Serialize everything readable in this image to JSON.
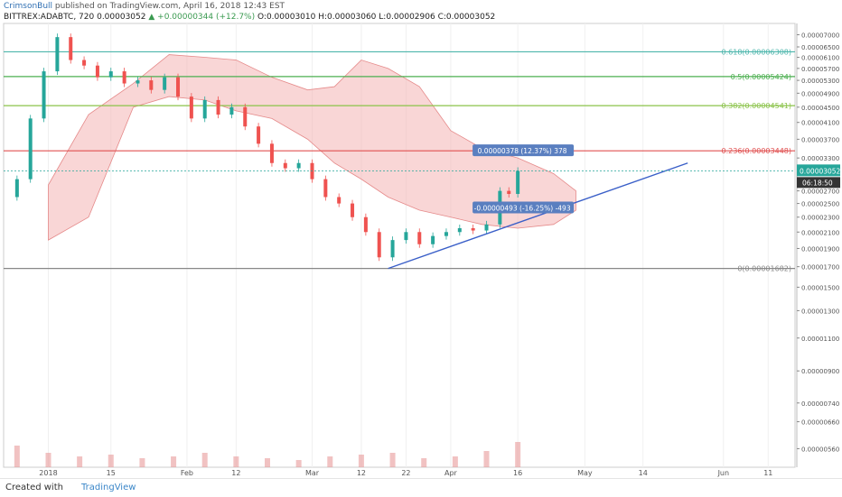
{
  "header": {
    "author": "CrimsonBull",
    "published": "published on TradingView.com, April 16, 2018 12:43 EST",
    "symbol": "BITTREX:ADABTC, 720",
    "last": "0.00003052",
    "change_arrow": "▲",
    "change": "+0.00000344 (+12.7%)",
    "ohlc": "O:0.00003010 H:0.00003060 L:0.00002906 C:0.00003052"
  },
  "footer": {
    "created_with": "Created with",
    "brand": "TradingView"
  },
  "colors": {
    "up": "#26a69a",
    "down": "#ef5350",
    "cloud_red": "#f4b5b5",
    "cloud_green": "#b5d8b0",
    "trend": "#3a5fc8",
    "fib_green": "#4caf50",
    "fib_red": "#e05050",
    "fib_yellow": "#8bc34a",
    "fib_teal": "#4db6ac"
  },
  "chart_data": {
    "type": "candlestick",
    "y_log": true,
    "ylim": [
      5e-06,
      7.5e-05
    ],
    "xlim": [
      "2017-12-22",
      "2018-06-17"
    ],
    "y_ticks": [
      {
        "label": "0.00007000",
        "v": 7e-05
      },
      {
        "label": "0.00006500",
        "v": 6.5e-05
      },
      {
        "label": "0.00006100",
        "v": 6.1e-05
      },
      {
        "label": "0.00005700",
        "v": 5.7e-05
      },
      {
        "label": "0.00005300",
        "v": 5.3e-05
      },
      {
        "label": "0.00004900",
        "v": 4.9e-05
      },
      {
        "label": "0.00004500",
        "v": 4.5e-05
      },
      {
        "label": "0.00004100",
        "v": 4.1e-05
      },
      {
        "label": "0.00003700",
        "v": 3.7e-05
      },
      {
        "label": "0.00003300",
        "v": 3.3e-05
      },
      {
        "label": "0.00002700",
        "v": 2.7e-05
      },
      {
        "label": "0.00002500",
        "v": 2.5e-05
      },
      {
        "label": "0.00002300",
        "v": 2.3e-05
      },
      {
        "label": "0.00002100",
        "v": 2.1e-05
      },
      {
        "label": "0.00001900",
        "v": 1.9e-05
      },
      {
        "label": "0.00001700",
        "v": 1.7e-05
      },
      {
        "label": "0.00001500",
        "v": 1.5e-05
      },
      {
        "label": "0.00001300",
        "v": 1.3e-05
      },
      {
        "label": "0.00001100",
        "v": 1.1e-05
      },
      {
        "label": "0.00000900",
        "v": 9e-06
      },
      {
        "label": "0.00000740",
        "v": 7.4e-06
      },
      {
        "label": "0.00000660",
        "v": 6.6e-06
      },
      {
        "label": "0.00000560",
        "v": 5.6e-06
      }
    ],
    "x_ticks": [
      {
        "label": "2018",
        "d": "2018-01-01"
      },
      {
        "label": "15",
        "d": "2018-01-15"
      },
      {
        "label": "Feb",
        "d": "2018-02-01"
      },
      {
        "label": "12",
        "d": "2018-02-12"
      },
      {
        "label": "Mar",
        "d": "2018-03-01"
      },
      {
        "label": "12",
        "d": "2018-03-12"
      },
      {
        "label": "22",
        "d": "2018-03-22"
      },
      {
        "label": "Apr",
        "d": "2018-04-01"
      },
      {
        "label": "16",
        "d": "2018-04-16"
      },
      {
        "label": "May",
        "d": "2018-05-01"
      },
      {
        "label": "14",
        "d": "2018-05-14"
      },
      {
        "label": "Jun",
        "d": "2018-06-01"
      },
      {
        "label": "11",
        "d": "2018-06-11"
      }
    ],
    "fib_levels": [
      {
        "label": "0.618(0.00006308)",
        "v": 6.308e-05,
        "color": "#4db6ac"
      },
      {
        "label": "0.5(0.00005424)",
        "v": 5.424e-05,
        "color": "#4caf50"
      },
      {
        "label": "0.382(0.00004541)",
        "v": 4.541e-05,
        "color": "#8bc34a"
      },
      {
        "label": "0.236(0.00003448)",
        "v": 3.448e-05,
        "color": "#e05050"
      },
      {
        "label": "0(0.00001682)",
        "v": 1.682e-05,
        "color": "#888888"
      }
    ],
    "last_price": {
      "label": "0.00003052",
      "v": 3.052e-05,
      "countdown": "06:18:50"
    },
    "annotations": [
      {
        "text": "0.00000378 (12.37%) 378",
        "v": 3.43e-05,
        "d": "2018-04-17"
      },
      {
        "text": "-0.00000493 (-16.25%) -493",
        "v": 2.42e-05,
        "d": "2018-04-17"
      }
    ],
    "trendline": {
      "from": {
        "d": "2018-03-18",
        "v": 1.682e-05
      },
      "to": {
        "d": "2018-05-24",
        "v": 3.2e-05
      }
    },
    "closes": [
      [
        "2017-12-22",
        2.6e-05
      ],
      [
        "2017-12-25",
        2.9e-05
      ],
      [
        "2017-12-28",
        4.2e-05
      ],
      [
        "2017-12-31",
        5.6e-05
      ],
      [
        "2018-01-03",
        6.9e-05
      ],
      [
        "2018-01-06",
        6e-05
      ],
      [
        "2018-01-09",
        5.8e-05
      ],
      [
        "2018-01-12",
        5.4e-05
      ],
      [
        "2018-01-15",
        5.6e-05
      ],
      [
        "2018-01-18",
        5.2e-05
      ],
      [
        "2018-01-21",
        5.3e-05
      ],
      [
        "2018-01-24",
        5e-05
      ],
      [
        "2018-01-27",
        5.4e-05
      ],
      [
        "2018-01-30",
        4.8e-05
      ],
      [
        "2018-02-02",
        4.2e-05
      ],
      [
        "2018-02-05",
        4.7e-05
      ],
      [
        "2018-02-08",
        4.3e-05
      ],
      [
        "2018-02-11",
        4.5e-05
      ],
      [
        "2018-02-14",
        4e-05
      ],
      [
        "2018-02-17",
        3.6e-05
      ],
      [
        "2018-02-20",
        3.2e-05
      ],
      [
        "2018-02-23",
        3.1e-05
      ],
      [
        "2018-02-26",
        3.2e-05
      ],
      [
        "2018-03-01",
        2.9e-05
      ],
      [
        "2018-03-04",
        2.6e-05
      ],
      [
        "2018-03-07",
        2.5e-05
      ],
      [
        "2018-03-10",
        2.3e-05
      ],
      [
        "2018-03-13",
        2.1e-05
      ],
      [
        "2018-03-16",
        1.8e-05
      ],
      [
        "2018-03-19",
        2e-05
      ],
      [
        "2018-03-22",
        2.1e-05
      ],
      [
        "2018-03-25",
        1.95e-05
      ],
      [
        "2018-03-28",
        2.05e-05
      ],
      [
        "2018-03-31",
        2.1e-05
      ],
      [
        "2018-04-03",
        2.15e-05
      ],
      [
        "2018-04-06",
        2.12e-05
      ],
      [
        "2018-04-09",
        2.2e-05
      ],
      [
        "2018-04-12",
        2.7e-05
      ],
      [
        "2018-04-14",
        2.65e-05
      ],
      [
        "2018-04-16",
        3.05e-05
      ]
    ],
    "cloud_upper": [
      [
        "2018-01-01",
        2.8e-05
      ],
      [
        "2018-01-10",
        4.3e-05
      ],
      [
        "2018-01-20",
        5.2e-05
      ],
      [
        "2018-01-28",
        6.2e-05
      ],
      [
        "2018-02-05",
        6.1e-05
      ],
      [
        "2018-02-12",
        6e-05
      ],
      [
        "2018-02-20",
        5.4e-05
      ],
      [
        "2018-02-28",
        5e-05
      ],
      [
        "2018-03-06",
        5.1e-05
      ],
      [
        "2018-03-12",
        6e-05
      ],
      [
        "2018-03-18",
        5.7e-05
      ],
      [
        "2018-03-25",
        5.1e-05
      ],
      [
        "2018-04-01",
        3.9e-05
      ],
      [
        "2018-04-08",
        3.5e-05
      ],
      [
        "2018-04-16",
        3.3e-05
      ],
      [
        "2018-04-24",
        3e-05
      ],
      [
        "2018-04-29",
        2.7e-05
      ]
    ],
    "cloud_lower": [
      [
        "2018-01-01",
        2e-05
      ],
      [
        "2018-01-10",
        2.3e-05
      ],
      [
        "2018-01-20",
        4.5e-05
      ],
      [
        "2018-01-28",
        4.8e-05
      ],
      [
        "2018-02-05",
        4.7e-05
      ],
      [
        "2018-02-12",
        4.4e-05
      ],
      [
        "2018-02-20",
        4.2e-05
      ],
      [
        "2018-02-28",
        3.7e-05
      ],
      [
        "2018-03-06",
        3.2e-05
      ],
      [
        "2018-03-12",
        2.9e-05
      ],
      [
        "2018-03-18",
        2.6e-05
      ],
      [
        "2018-03-25",
        2.4e-05
      ],
      [
        "2018-04-01",
        2.3e-05
      ],
      [
        "2018-04-08",
        2.2e-05
      ],
      [
        "2018-04-16",
        2.15e-05
      ],
      [
        "2018-04-24",
        2.2e-05
      ],
      [
        "2018-04-29",
        2.4e-05
      ]
    ],
    "volume": [
      [
        "2017-12-25",
        0.6
      ],
      [
        "2018-01-01",
        0.4
      ],
      [
        "2018-01-08",
        0.3
      ],
      [
        "2018-01-15",
        0.35
      ],
      [
        "2018-01-22",
        0.25
      ],
      [
        "2018-01-29",
        0.3
      ],
      [
        "2018-02-05",
        0.4
      ],
      [
        "2018-02-12",
        0.3
      ],
      [
        "2018-02-19",
        0.25
      ],
      [
        "2018-02-26",
        0.2
      ],
      [
        "2018-03-05",
        0.3
      ],
      [
        "2018-03-12",
        0.35
      ],
      [
        "2018-03-19",
        0.4
      ],
      [
        "2018-03-26",
        0.25
      ],
      [
        "2018-04-02",
        0.3
      ],
      [
        "2018-04-09",
        0.45
      ],
      [
        "2018-04-16",
        0.7
      ]
    ]
  }
}
